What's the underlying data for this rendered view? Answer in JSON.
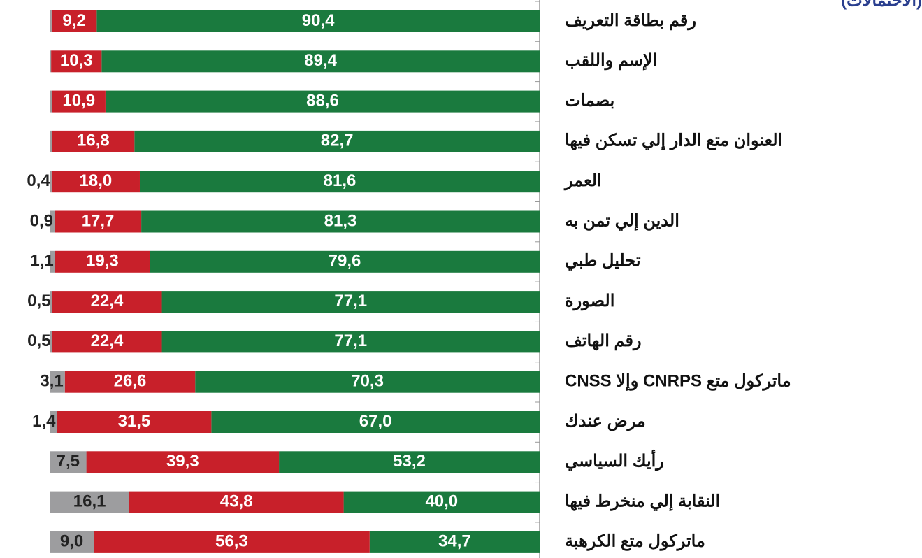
{
  "chart_data": {
    "type": "stacked-bar-horizontal",
    "title": "(الاحتمالات)",
    "categories": [
      "رقم بطاقة التعريف",
      "الإسم واللقب",
      "بصمات",
      "العنوان متع الدار إلي تسكن فيها",
      "العمر",
      "الدين إلي تمن به",
      "تحليل طبي",
      "الصورة",
      "رقم الهاتف",
      "ماتركول متع CNRPS وإلا CNSS",
      "مرض عندك",
      "رأيك السياسي",
      "النقابة إلي منخرط فيها",
      "ماتركول متع الكرهبة"
    ],
    "xlim": [
      0,
      100
    ],
    "series": [
      {
        "color": "#1a7a3e",
        "values": [
          90.4,
          89.4,
          88.6,
          82.7,
          81.6,
          81.3,
          79.6,
          77.1,
          77.1,
          70.3,
          67.0,
          53.2,
          40.0,
          34.7
        ],
        "value_labels": [
          "90,4",
          "89,4",
          "88,6",
          "82,7",
          "81,6",
          "81,3",
          "79,6",
          "77,1",
          "77,1",
          "70,3",
          "67,0",
          "53,2",
          "40,0",
          "34,7"
        ]
      },
      {
        "color": "#c8202a",
        "values": [
          9.2,
          10.3,
          10.9,
          16.8,
          18.0,
          17.7,
          19.3,
          22.4,
          22.4,
          26.6,
          31.5,
          39.3,
          43.8,
          56.3
        ],
        "value_labels": [
          "9,2",
          "10,3",
          "10,9",
          "16,8",
          "18,0",
          "17,7",
          "19,3",
          "22,4",
          "22,4",
          "26,6",
          "31,5",
          "39,3",
          "43,8",
          "56,3"
        ]
      },
      {
        "color": "#9d9d9f",
        "values": [
          0.4,
          0.3,
          0.5,
          0.5,
          0.4,
          0.9,
          1.1,
          0.5,
          0.5,
          3.1,
          1.4,
          7.5,
          16.1,
          9.0
        ],
        "value_labels": [
          null,
          null,
          null,
          null,
          "0,4",
          "0,9",
          "1,1",
          "0,5",
          "0,5",
          "3,1",
          "1,4",
          "7,5",
          "16,1",
          "9,0"
        ]
      }
    ]
  }
}
